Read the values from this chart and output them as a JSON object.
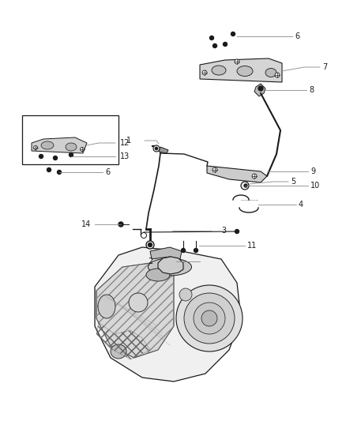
{
  "bg_color": "#ffffff",
  "fig_width": 4.38,
  "fig_height": 5.33,
  "dpi": 100,
  "label_color": "#1a1a1a",
  "line_color": "#888888",
  "part_color": "#1a1a1a",
  "box_color": "#000000",
  "gray1": "#c8c8c8",
  "gray2": "#d8d8d8",
  "gray3": "#e8e8e8",
  "dark_gray": "#555555"
}
